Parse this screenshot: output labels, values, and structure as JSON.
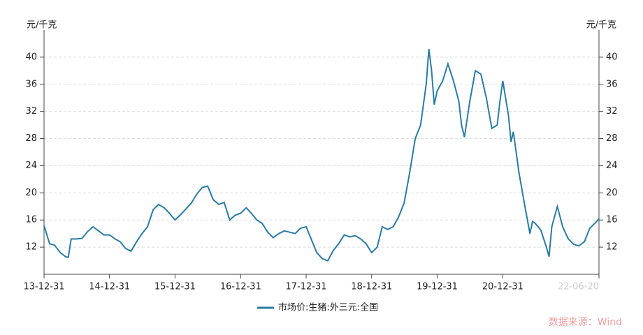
{
  "chart_data": {
    "type": "line",
    "ylabel": "元/千克",
    "y2label": "元/千克",
    "source": "数据来源：Wind",
    "x": [
      "13-12-31",
      "14-01-31",
      "14-02-28",
      "14-03-31",
      "14-04-30",
      "14-05-15",
      "14-05-31",
      "14-06-30",
      "14-07-31",
      "14-08-31",
      "14-09-30",
      "14-10-31",
      "14-11-30",
      "14-12-31",
      "15-01-31",
      "15-02-28",
      "15-03-31",
      "15-04-30",
      "15-05-31",
      "15-06-30",
      "15-07-31",
      "15-08-31",
      "15-09-30",
      "15-10-31",
      "15-11-30",
      "15-12-31",
      "16-01-31",
      "16-02-29",
      "16-03-31",
      "16-04-30",
      "16-05-31",
      "16-06-30",
      "16-07-31",
      "16-08-31",
      "16-09-30",
      "16-10-31",
      "16-11-30",
      "16-12-31",
      "17-01-31",
      "17-02-28",
      "17-03-31",
      "17-04-30",
      "17-05-31",
      "17-06-30",
      "17-07-31",
      "17-08-31",
      "17-09-30",
      "17-10-31",
      "17-11-30",
      "17-12-31",
      "18-01-31",
      "18-02-28",
      "18-03-31",
      "18-04-30",
      "18-05-31",
      "18-06-30",
      "18-07-31",
      "18-08-31",
      "18-09-30",
      "18-10-31",
      "18-11-30",
      "18-12-31",
      "19-01-31",
      "19-02-28",
      "19-03-31",
      "19-04-30",
      "19-05-31",
      "19-06-30",
      "19-07-31",
      "19-08-31",
      "19-09-30",
      "19-10-31",
      "19-11-15",
      "19-11-30",
      "19-12-15",
      "19-12-31",
      "20-01-31",
      "20-02-29",
      "20-03-31",
      "20-04-30",
      "20-05-15",
      "20-05-31",
      "20-06-30",
      "20-07-31",
      "20-08-31",
      "20-09-30",
      "20-10-31",
      "20-11-30",
      "20-12-15",
      "20-12-31",
      "21-01-31",
      "21-02-15",
      "21-02-28",
      "21-03-31",
      "21-04-30",
      "21-05-31",
      "21-06-15",
      "21-06-30",
      "21-07-31",
      "21-08-31",
      "21-09-15",
      "21-09-30",
      "21-10-31",
      "21-11-30",
      "21-12-31",
      "22-01-31",
      "22-02-28",
      "22-03-31",
      "22-04-30",
      "22-05-31",
      "22-06-20"
    ],
    "series": [
      {
        "name": "市场价:生猪:外三元:全国",
        "color": "#2a7ca3",
        "values": [
          15.2,
          12.5,
          12.3,
          11.2,
          10.6,
          10.5,
          13.2,
          13.2,
          13.3,
          14.3,
          15.0,
          14.4,
          13.8,
          13.8,
          13.2,
          12.8,
          11.8,
          11.4,
          12.8,
          14.0,
          15.0,
          17.5,
          18.3,
          17.8,
          17.0,
          16.0,
          16.8,
          17.6,
          18.5,
          19.8,
          20.8,
          21.0,
          19.0,
          18.3,
          18.6,
          16.0,
          16.7,
          17.0,
          17.8,
          17.0,
          16.0,
          15.5,
          14.2,
          13.4,
          14.0,
          14.4,
          14.2,
          14.0,
          14.8,
          15.0,
          13.0,
          11.2,
          10.3,
          10.0,
          11.5,
          12.5,
          13.8,
          13.5,
          13.7,
          13.2,
          12.5,
          11.2,
          12.0,
          15.0,
          14.6,
          15.0,
          16.5,
          18.5,
          23.0,
          28.0,
          30.0,
          36.0,
          41.2,
          38.0,
          33.0,
          35.0,
          36.5,
          39.0,
          36.5,
          33.5,
          30.0,
          28.2,
          33.5,
          38.0,
          37.5,
          34.0,
          29.5,
          30.0,
          33.5,
          36.5,
          31.5,
          27.5,
          29.0,
          23.0,
          18.5,
          14.0,
          15.8,
          15.5,
          14.5,
          12.0,
          10.6,
          15.0,
          18.0,
          15.0,
          13.2,
          12.4,
          12.2,
          12.8,
          14.8,
          15.6,
          16.2
        ]
      }
    ],
    "xlim": [
      "13-12-31",
      "22-06-20"
    ],
    "xticks": [
      "13-12-31",
      "14-12-31",
      "15-12-31",
      "16-12-31",
      "17-12-31",
      "18-12-31",
      "19-12-31",
      "20-12-31",
      "22-06-20"
    ],
    "ylim": [
      8,
      44
    ],
    "yticks": [
      12,
      16,
      20,
      24,
      28,
      32,
      36,
      40
    ],
    "y2lim": [
      8,
      44
    ],
    "y2ticks": [
      12,
      16,
      20,
      24,
      28,
      32,
      36,
      40
    ],
    "grid": true
  }
}
